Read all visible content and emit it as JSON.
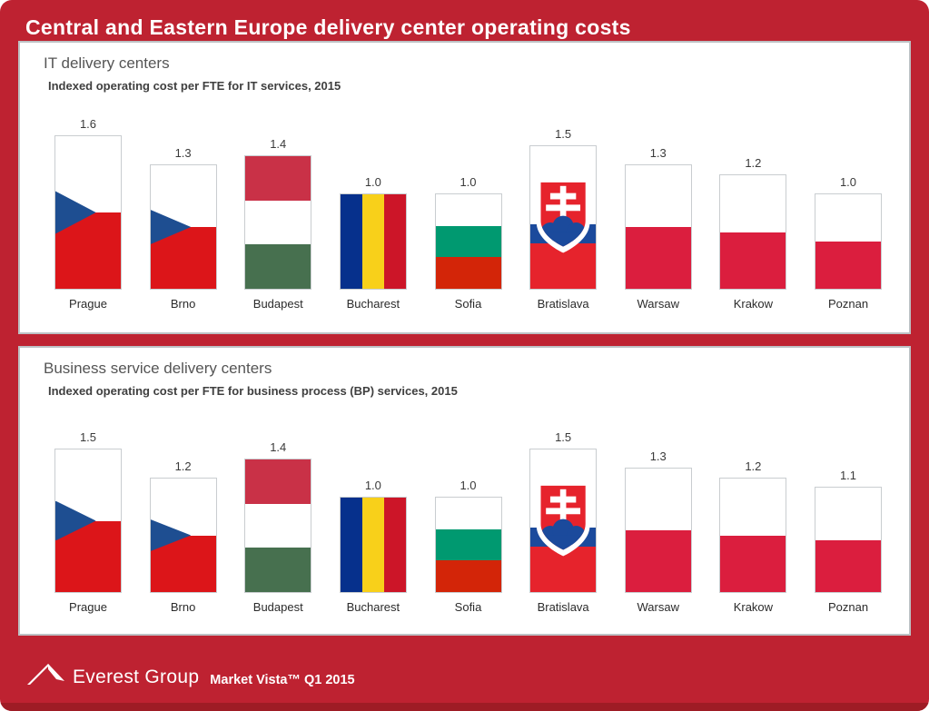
{
  "title": "Central and Eastern Europe delivery center operating costs",
  "footer": {
    "logo_text": "Everest Group",
    "caption": "Market Vista™ Q1 2015"
  },
  "colors": {
    "background_red": "#BE2231",
    "footer_strip": "#9E1C25",
    "panel_border": "#BDC1C4",
    "bar_border": "#C9CDD0",
    "czech_red": "#DC1519",
    "czech_blue": "#1E4E91",
    "poland_red": "#DB1E3E",
    "hungary_red": "#C93147",
    "hungary_green": "#47704F",
    "bulgaria_green": "#009970",
    "bulgaria_red": "#D32508",
    "romania_blue": "#06308C",
    "romania_yellow": "#F8D01A",
    "romania_red": "#CC1528",
    "slovakia_red": "#E6232C",
    "slovakia_blue": "#1B4A9C"
  },
  "chart_data": [
    {
      "type": "bar",
      "title": "IT delivery centers",
      "subtitle": "Indexed operating cost per FTE for IT services, 2015",
      "categories": [
        "Prague",
        "Brno",
        "Budapest",
        "Bucharest",
        "Sofia",
        "Bratislava",
        "Warsaw",
        "Krakow",
        "Poznan"
      ],
      "values": [
        1.6,
        1.3,
        1.4,
        1.0,
        1.0,
        1.5,
        1.3,
        1.2,
        1.0
      ],
      "countries": [
        "czech",
        "czech",
        "hungary",
        "romania",
        "bulgaria",
        "slovakia",
        "poland",
        "poland",
        "poland"
      ],
      "bar_fill": "country-flag",
      "ylim": [
        0,
        1.7
      ],
      "grid": false,
      "legend": false
    },
    {
      "type": "bar",
      "title": "Business service delivery centers",
      "subtitle": "Indexed operating cost per FTE for business process (BP) services, 2015",
      "categories": [
        "Prague",
        "Brno",
        "Budapest",
        "Bucharest",
        "Sofia",
        "Bratislava",
        "Warsaw",
        "Krakow",
        "Poznan"
      ],
      "values": [
        1.5,
        1.2,
        1.4,
        1.0,
        1.0,
        1.5,
        1.3,
        1.2,
        1.1
      ],
      "countries": [
        "czech",
        "czech",
        "hungary",
        "romania",
        "bulgaria",
        "slovakia",
        "poland",
        "poland",
        "poland"
      ],
      "bar_fill": "country-flag",
      "ylim": [
        0,
        1.7
      ],
      "grid": false,
      "legend": false
    }
  ]
}
